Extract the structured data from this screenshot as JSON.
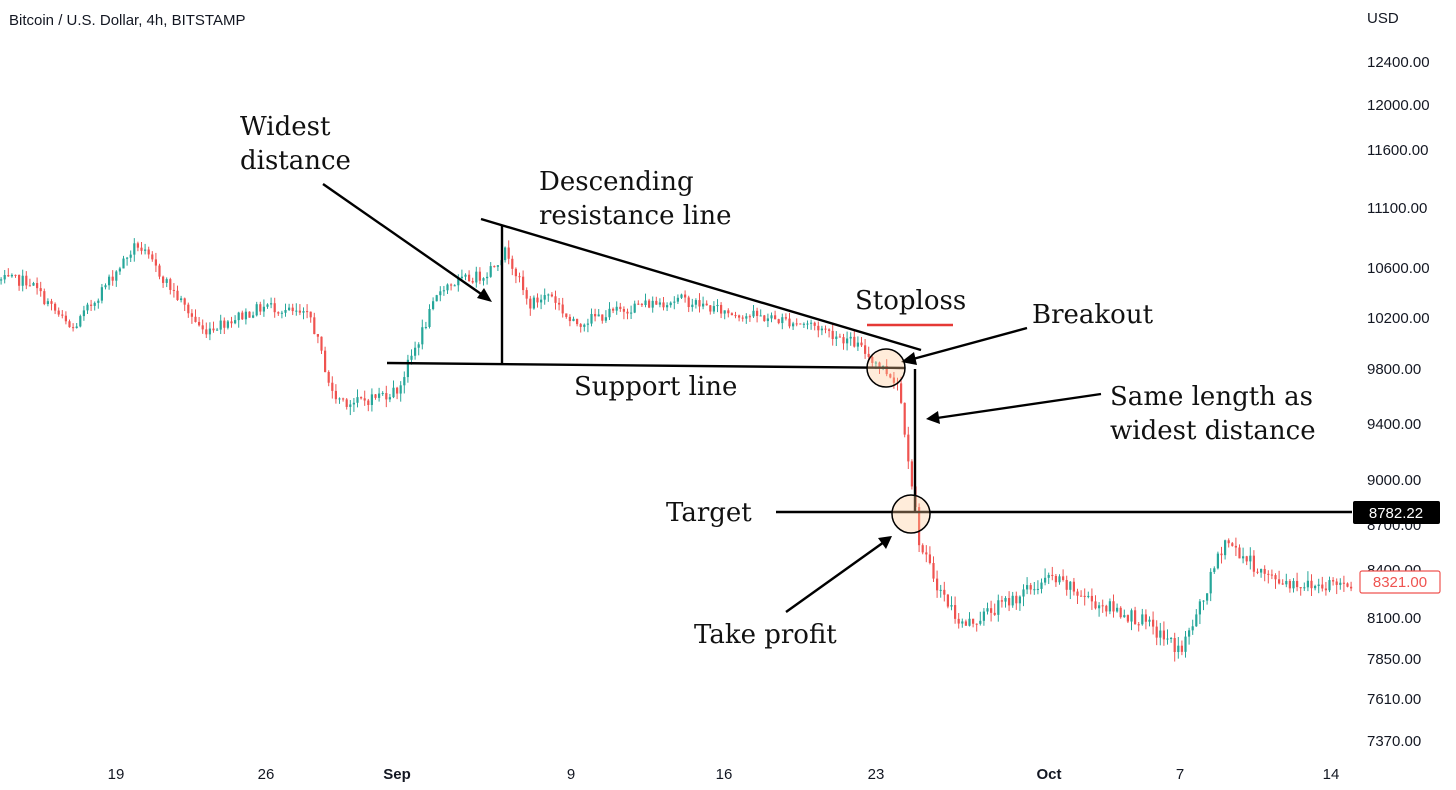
{
  "header": {
    "symbol_title": "Bitcoin / U.S. Dollar, 4h, BITSTAMP",
    "currency": "USD"
  },
  "price_axis": {
    "ticks": [
      "12400.00",
      "12000.00",
      "11600.00",
      "11100.00",
      "10600.00",
      "10200.00",
      "9800.00",
      "9400.00",
      "9000.00",
      "8700.00",
      "8400.00",
      "8100.00",
      "7850.00",
      "7610.00",
      "7370.00"
    ],
    "target_badge": "8782.22",
    "last_price_badge": "8321.00"
  },
  "time_axis": {
    "ticks": [
      "19",
      "26",
      "Sep",
      "9",
      "16",
      "23",
      "Oct",
      "7",
      "14"
    ]
  },
  "annotations": {
    "widest_distance_1": "Widest",
    "widest_distance_2": "distance",
    "descending_1": "Descending",
    "descending_2": "resistance line",
    "stoploss": "Stoploss",
    "breakout": "Breakout",
    "support_line": "Support line",
    "same_length_1": "Same length as",
    "same_length_2": "widest distance",
    "target": "Target",
    "take_profit": "Take profit"
  },
  "colors": {
    "up": "#26a69a",
    "down": "#ef5350",
    "annotation": "#000000",
    "stoploss": "#e53935",
    "target_badge_bg": "#000000",
    "last_price_border": "#ef5350"
  },
  "chart_data": {
    "type": "candlestick",
    "title": "Bitcoin / U.S. Dollar, 4h, BITSTAMP",
    "currency": "USD",
    "x_range": [
      "Aug 15",
      "Oct 15"
    ],
    "y_ticks": [
      12400,
      12000,
      11600,
      11100,
      10600,
      10200,
      9800,
      9400,
      9000,
      8700,
      8400,
      8100,
      7850,
      7610,
      7370
    ],
    "price_path": [
      {
        "date": "Aug 15",
        "close": 10500
      },
      {
        "date": "Aug 17",
        "close": 10100
      },
      {
        "date": "Aug 20",
        "close": 10800
      },
      {
        "date": "Aug 23",
        "close": 10100
      },
      {
        "date": "Aug 26",
        "close": 10300
      },
      {
        "date": "Aug 28",
        "close": 10200
      },
      {
        "date": "Aug 29",
        "close": 9600
      },
      {
        "date": "Aug 30",
        "close": 9550
      },
      {
        "date": "Sep 1",
        "close": 9650
      },
      {
        "date": "Sep 3",
        "close": 10450
      },
      {
        "date": "Sep 5",
        "close": 10550
      },
      {
        "date": "Sep 6",
        "close": 10750
      },
      {
        "date": "Sep 7",
        "close": 10300
      },
      {
        "date": "Sep 8",
        "close": 10400
      },
      {
        "date": "Sep 9",
        "close": 10150
      },
      {
        "date": "Sep 12",
        "close": 10300
      },
      {
        "date": "Sep 14",
        "close": 10350
      },
      {
        "date": "Sep 16",
        "close": 10250
      },
      {
        "date": "Sep 18",
        "close": 10200
      },
      {
        "date": "Sep 20",
        "close": 10150
      },
      {
        "date": "Sep 22",
        "close": 10000
      },
      {
        "date": "Sep 24",
        "close": 9700
      },
      {
        "date": "Sep 25",
        "close": 8550
      },
      {
        "date": "Sep 26",
        "close": 8250
      },
      {
        "date": "Sep 27",
        "close": 8050
      },
      {
        "date": "Sep 29",
        "close": 8200
      },
      {
        "date": "Oct 1",
        "close": 8350
      },
      {
        "date": "Oct 3",
        "close": 8200
      },
      {
        "date": "Oct 5",
        "close": 8100
      },
      {
        "date": "Oct 7",
        "close": 7900
      },
      {
        "date": "Oct 8",
        "close": 8200
      },
      {
        "date": "Oct 9",
        "close": 8600
      },
      {
        "date": "Oct 11",
        "close": 8350
      },
      {
        "date": "Oct 13",
        "close": 8300
      },
      {
        "date": "Oct 14",
        "close": 8321
      }
    ],
    "levels": {
      "target": 8782.22,
      "last_price": 8321.0,
      "support": 9850,
      "stoploss": 10150
    },
    "grid": false
  }
}
